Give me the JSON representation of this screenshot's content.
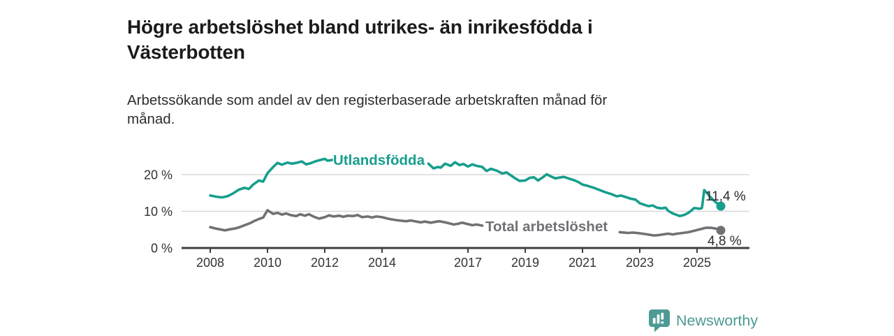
{
  "header": {
    "title": "Högre arbetslöshet bland utrikes- än inrikesfödda i Västerbotten",
    "subtitle": "Arbetssökande som andel av den registerbaserade arbetskraften månad för månad."
  },
  "branding": {
    "name": "Newsworthy",
    "icon": "newsworthy-chart-bubble-icon",
    "color": "#4d9b94"
  },
  "chart_data": {
    "type": "line",
    "title": "Högre arbetslöshet bland utrikes- än inrikesfödda i Västerbotten",
    "subtitle": "Arbetssökande som andel av den registerbaserade arbetskraften månad för månad.",
    "unit": "%",
    "grid": "horizontal",
    "legend_position": "inline-labels",
    "xlim": [
      2007.95,
      2026.1
    ],
    "ylim": [
      0,
      26.5
    ],
    "axis_color": "#3f3f3f",
    "gridline_color": "#d8d8d8",
    "axis_text_color": "#333333",
    "end_label_color": "#2b2b2b",
    "x_ticks": [
      {
        "value": 2008,
        "label": "2008"
      },
      {
        "value": 2010,
        "label": "2010"
      },
      {
        "value": 2012,
        "label": "2012"
      },
      {
        "value": 2014,
        "label": "2014"
      },
      {
        "value": 2017,
        "label": "2017"
      },
      {
        "value": 2019,
        "label": "2019"
      },
      {
        "value": 2021,
        "label": "2021"
      },
      {
        "value": 2023,
        "label": "2023"
      },
      {
        "value": 2025,
        "label": "2025"
      }
    ],
    "y_ticks": [
      {
        "value": 0,
        "label": "0 %"
      },
      {
        "value": 10,
        "label": "10 %"
      },
      {
        "value": 20,
        "label": "20 %"
      }
    ],
    "series": [
      {
        "name": "Utlandsfödda",
        "color": "#179e8d",
        "end_label": "11,4 %",
        "last_value": 11.4,
        "points": [
          [
            2008.0,
            14.3
          ],
          [
            2008.2,
            14.0
          ],
          [
            2008.4,
            13.8
          ],
          [
            2008.6,
            14.1
          ],
          [
            2008.8,
            14.9
          ],
          [
            2009.0,
            15.9
          ],
          [
            2009.2,
            16.4
          ],
          [
            2009.35,
            16.1
          ],
          [
            2009.5,
            17.3
          ],
          [
            2009.7,
            18.4
          ],
          [
            2009.85,
            18.1
          ],
          [
            2010.0,
            20.4
          ],
          [
            2010.2,
            22.1
          ],
          [
            2010.35,
            23.2
          ],
          [
            2010.5,
            22.7
          ],
          [
            2010.7,
            23.3
          ],
          [
            2010.85,
            23.0
          ],
          [
            2011.0,
            23.2
          ],
          [
            2011.2,
            23.6
          ],
          [
            2011.35,
            22.8
          ],
          [
            2011.5,
            23.1
          ],
          [
            2011.7,
            23.7
          ],
          [
            2011.85,
            24.0
          ],
          [
            2012.0,
            24.3
          ],
          [
            2012.1,
            23.8
          ],
          [
            2012.25,
            24.0
          ],
          [
            2012.4,
            23.6
          ],
          [
            2012.6,
            23.2
          ],
          [
            2012.8,
            23.5
          ],
          [
            2013.0,
            23.2
          ],
          [
            2013.2,
            23.5
          ],
          [
            2013.4,
            23.0
          ],
          [
            2013.6,
            23.3
          ],
          [
            2013.8,
            22.9
          ],
          [
            2014.0,
            23.2
          ],
          [
            2014.2,
            22.8
          ],
          [
            2014.4,
            23.1
          ],
          [
            2014.6,
            22.7
          ],
          [
            2014.8,
            22.9
          ],
          [
            2015.0,
            22.8
          ],
          [
            2015.2,
            22.5
          ],
          [
            2015.4,
            22.7
          ],
          [
            2015.62,
            23.0
          ],
          [
            2015.8,
            21.7
          ],
          [
            2015.95,
            22.1
          ],
          [
            2016.05,
            21.9
          ],
          [
            2016.2,
            23.0
          ],
          [
            2016.4,
            22.4
          ],
          [
            2016.55,
            23.4
          ],
          [
            2016.7,
            22.6
          ],
          [
            2016.85,
            22.9
          ],
          [
            2017.0,
            22.2
          ],
          [
            2017.15,
            22.8
          ],
          [
            2017.3,
            22.4
          ],
          [
            2017.5,
            22.1
          ],
          [
            2017.65,
            21.0
          ],
          [
            2017.8,
            21.6
          ],
          [
            2018.0,
            21.1
          ],
          [
            2018.2,
            20.3
          ],
          [
            2018.35,
            20.6
          ],
          [
            2018.5,
            19.8
          ],
          [
            2018.65,
            19.0
          ],
          [
            2018.8,
            18.3
          ],
          [
            2019.0,
            18.4
          ],
          [
            2019.15,
            19.1
          ],
          [
            2019.3,
            19.3
          ],
          [
            2019.45,
            18.4
          ],
          [
            2019.6,
            19.2
          ],
          [
            2019.75,
            20.1
          ],
          [
            2019.9,
            19.5
          ],
          [
            2020.05,
            19.0
          ],
          [
            2020.2,
            19.2
          ],
          [
            2020.35,
            19.4
          ],
          [
            2020.5,
            19.0
          ],
          [
            2020.7,
            18.5
          ],
          [
            2020.85,
            18.0
          ],
          [
            2021.0,
            17.3
          ],
          [
            2021.2,
            16.9
          ],
          [
            2021.4,
            16.4
          ],
          [
            2021.6,
            15.8
          ],
          [
            2021.8,
            15.2
          ],
          [
            2022.0,
            14.7
          ],
          [
            2022.2,
            14.1
          ],
          [
            2022.35,
            14.3
          ],
          [
            2022.5,
            13.9
          ],
          [
            2022.7,
            13.4
          ],
          [
            2022.85,
            13.2
          ],
          [
            2023.0,
            12.2
          ],
          [
            2023.15,
            11.8
          ],
          [
            2023.3,
            11.4
          ],
          [
            2023.45,
            11.6
          ],
          [
            2023.6,
            11.0
          ],
          [
            2023.75,
            10.8
          ],
          [
            2023.9,
            11.0
          ],
          [
            2024.0,
            10.1
          ],
          [
            2024.15,
            9.4
          ],
          [
            2024.3,
            9.0
          ],
          [
            2024.4,
            8.7
          ],
          [
            2024.55,
            9.0
          ],
          [
            2024.7,
            9.6
          ],
          [
            2024.8,
            10.2
          ],
          [
            2024.9,
            10.9
          ],
          [
            2025.0,
            10.8
          ],
          [
            2025.1,
            10.7
          ],
          [
            2025.17,
            10.9
          ],
          [
            2025.25,
            15.8
          ],
          [
            2025.35,
            15.0
          ],
          [
            2025.45,
            14.0
          ],
          [
            2025.55,
            13.2
          ],
          [
            2025.65,
            12.5
          ],
          [
            2025.75,
            11.9
          ],
          [
            2025.83,
            11.4
          ]
        ]
      },
      {
        "name": "Total arbetslöshet",
        "color": "#717175",
        "end_label": "4,8 %",
        "last_value": 4.8,
        "points": [
          [
            2008.0,
            5.7
          ],
          [
            2008.2,
            5.3
          ],
          [
            2008.4,
            5.0
          ],
          [
            2008.5,
            4.8
          ],
          [
            2008.7,
            5.1
          ],
          [
            2008.85,
            5.3
          ],
          [
            2009.0,
            5.6
          ],
          [
            2009.2,
            6.2
          ],
          [
            2009.4,
            6.8
          ],
          [
            2009.55,
            7.4
          ],
          [
            2009.7,
            7.9
          ],
          [
            2009.85,
            8.3
          ],
          [
            2010.0,
            10.3
          ],
          [
            2010.1,
            9.8
          ],
          [
            2010.2,
            9.3
          ],
          [
            2010.35,
            9.6
          ],
          [
            2010.5,
            9.1
          ],
          [
            2010.65,
            9.4
          ],
          [
            2010.8,
            9.0
          ],
          [
            2011.0,
            8.7
          ],
          [
            2011.15,
            9.2
          ],
          [
            2011.3,
            8.8
          ],
          [
            2011.45,
            9.2
          ],
          [
            2011.6,
            8.6
          ],
          [
            2011.8,
            8.0
          ],
          [
            2012.0,
            8.4
          ],
          [
            2012.15,
            8.9
          ],
          [
            2012.3,
            8.6
          ],
          [
            2012.5,
            8.8
          ],
          [
            2012.65,
            8.5
          ],
          [
            2012.8,
            8.8
          ],
          [
            2013.0,
            8.7
          ],
          [
            2013.15,
            9.0
          ],
          [
            2013.3,
            8.4
          ],
          [
            2013.5,
            8.6
          ],
          [
            2013.65,
            8.3
          ],
          [
            2013.8,
            8.6
          ],
          [
            2014.0,
            8.4
          ],
          [
            2014.2,
            8.0
          ],
          [
            2014.35,
            7.8
          ],
          [
            2014.5,
            7.6
          ],
          [
            2014.7,
            7.4
          ],
          [
            2014.85,
            7.3
          ],
          [
            2015.0,
            7.5
          ],
          [
            2015.2,
            7.2
          ],
          [
            2015.35,
            7.0
          ],
          [
            2015.5,
            7.2
          ],
          [
            2015.7,
            6.9
          ],
          [
            2015.85,
            7.1
          ],
          [
            2016.0,
            7.3
          ],
          [
            2016.2,
            7.0
          ],
          [
            2016.35,
            6.7
          ],
          [
            2016.5,
            6.4
          ],
          [
            2016.65,
            6.6
          ],
          [
            2016.8,
            6.9
          ],
          [
            2017.0,
            6.5
          ],
          [
            2017.15,
            6.2
          ],
          [
            2017.3,
            6.4
          ],
          [
            2017.5,
            6.1
          ],
          [
            2017.8,
            5.8
          ],
          [
            2018.1,
            5.6
          ],
          [
            2018.5,
            5.3
          ],
          [
            2019.0,
            5.2
          ],
          [
            2019.5,
            5.0
          ],
          [
            2020.0,
            5.2
          ],
          [
            2020.3,
            5.8
          ],
          [
            2020.6,
            5.6
          ],
          [
            2021.0,
            5.2
          ],
          [
            2021.5,
            4.8
          ],
          [
            2022.0,
            4.5
          ],
          [
            2022.3,
            4.3
          ],
          [
            2022.45,
            4.2
          ],
          [
            2022.6,
            4.1
          ],
          [
            2022.75,
            4.2
          ],
          [
            2022.9,
            4.1
          ],
          [
            2023.0,
            4.0
          ],
          [
            2023.2,
            3.8
          ],
          [
            2023.35,
            3.6
          ],
          [
            2023.5,
            3.4
          ],
          [
            2023.65,
            3.5
          ],
          [
            2023.8,
            3.7
          ],
          [
            2024.0,
            3.9
          ],
          [
            2024.15,
            3.7
          ],
          [
            2024.3,
            3.9
          ],
          [
            2024.5,
            4.1
          ],
          [
            2024.7,
            4.3
          ],
          [
            2024.85,
            4.6
          ],
          [
            2025.0,
            4.9
          ],
          [
            2025.15,
            5.2
          ],
          [
            2025.3,
            5.5
          ],
          [
            2025.5,
            5.5
          ],
          [
            2025.65,
            5.3
          ],
          [
            2025.83,
            4.8
          ]
        ]
      }
    ]
  }
}
